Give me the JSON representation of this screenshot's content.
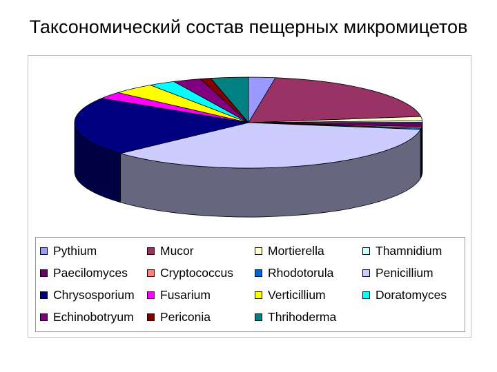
{
  "chart_data": {
    "type": "pie",
    "style": "3d",
    "title": "Таксономический состав пещерных микромицетов",
    "legend_position": "bottom",
    "slices": [
      {
        "name": "Pythium",
        "value": 2.5,
        "color": "#9999ff",
        "side": "#5c5cb0"
      },
      {
        "name": "Mucor",
        "value": 20.5,
        "color": "#993366",
        "side": "#5a1d3b"
      },
      {
        "name": "Mortierella",
        "value": 1.5,
        "color": "#ffffcc",
        "side": "#b8b88c"
      },
      {
        "name": "Thamnidium",
        "value": 0.6,
        "color": "#ccffff",
        "side": "#8ab3b3"
      },
      {
        "name": "Paecilomyces",
        "value": 1.5,
        "color": "#660066",
        "side": "#3a003a"
      },
      {
        "name": "Cryptococcus",
        "value": 0.5,
        "color": "#ff8080",
        "side": "#b05858"
      },
      {
        "name": "Rhodotorula",
        "value": 0.5,
        "color": "#0066cc",
        "side": "#003c7a"
      },
      {
        "name": "Penicillium",
        "value": 36.0,
        "color": "#ccccff",
        "side": "#66667f"
      },
      {
        "name": "Chrysosporium",
        "value": 21.0,
        "color": "#000080",
        "side": "#000044"
      },
      {
        "name": "Fusarium",
        "value": 2.5,
        "color": "#ff00ff",
        "side": "#a000a0"
      },
      {
        "name": "Verticillium",
        "value": 4.0,
        "color": "#ffff00",
        "side": "#a8a800"
      },
      {
        "name": "Doratomyces",
        "value": 2.5,
        "color": "#00ffff",
        "side": "#00a0a0"
      },
      {
        "name": "Echinobotryum",
        "value": 2.6,
        "color": "#800080",
        "side": "#480048"
      },
      {
        "name": "Periconia",
        "value": 1.0,
        "color": "#800000",
        "side": "#480000"
      },
      {
        "name": "Thrihoderma",
        "value": 3.5,
        "color": "#008080",
        "side": "#004848"
      }
    ]
  }
}
